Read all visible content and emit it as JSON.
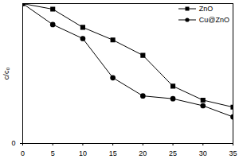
{
  "chart_data": {
    "type": "line",
    "x_label": null,
    "y_label": "c/c₀",
    "x": [
      0,
      5,
      10,
      15,
      20,
      25,
      30,
      35
    ],
    "series": [
      {
        "name": "ZnO",
        "color": "#000000",
        "marker": "square",
        "values": [
          1.0,
          0.96,
          0.83,
          0.74,
          0.63,
          0.41,
          0.31,
          0.26
        ]
      },
      {
        "name": "Cu@ZnO",
        "color": "#000000",
        "marker": "circle",
        "values": [
          1.0,
          0.85,
          0.75,
          0.47,
          0.34,
          0.32,
          0.27,
          0.19
        ]
      }
    ],
    "xlim": [
      0,
      35
    ],
    "xticks": [
      0,
      5,
      10,
      15,
      20,
      25,
      30,
      35
    ],
    "ylim": [
      0,
      1.0
    ],
    "yticks": [
      0
    ],
    "legend": "top-right",
    "grid": false
  }
}
